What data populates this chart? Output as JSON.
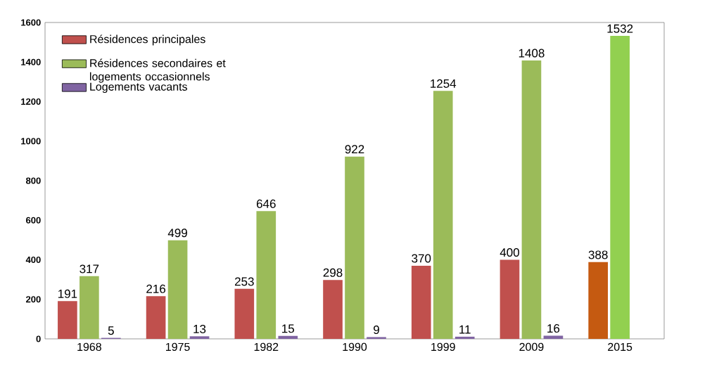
{
  "chart_data": {
    "type": "bar",
    "categories": [
      "1968",
      "1975",
      "1982",
      "1990",
      "1999",
      "2009",
      "2015"
    ],
    "series": [
      {
        "name": "Résidences principales",
        "color": "#c0504d",
        "colors": [
          "#c0504d",
          "#c0504d",
          "#c0504d",
          "#c0504d",
          "#c0504d",
          "#c0504d",
          "#c55a11"
        ],
        "values": [
          191,
          216,
          253,
          298,
          370,
          400,
          388
        ]
      },
      {
        "name": "Résidences secondaires et logements occasionnels",
        "color": "#9bbb59",
        "colors": [
          "#9bbb59",
          "#9bbb59",
          "#9bbb59",
          "#9bbb59",
          "#9bbb59",
          "#9bbb59",
          "#92d050"
        ],
        "values": [
          317,
          499,
          646,
          922,
          1254,
          1408,
          1532
        ]
      },
      {
        "name": "Logements vacants",
        "color": "#8064a2",
        "values": [
          5,
          13,
          15,
          9,
          11,
          16,
          null
        ]
      }
    ],
    "ylim": [
      0,
      1600
    ],
    "yticks": [
      0,
      200,
      400,
      600,
      800,
      1000,
      1200,
      1400,
      1600
    ],
    "data_labels": true,
    "legend": "top left",
    "grid": false
  }
}
